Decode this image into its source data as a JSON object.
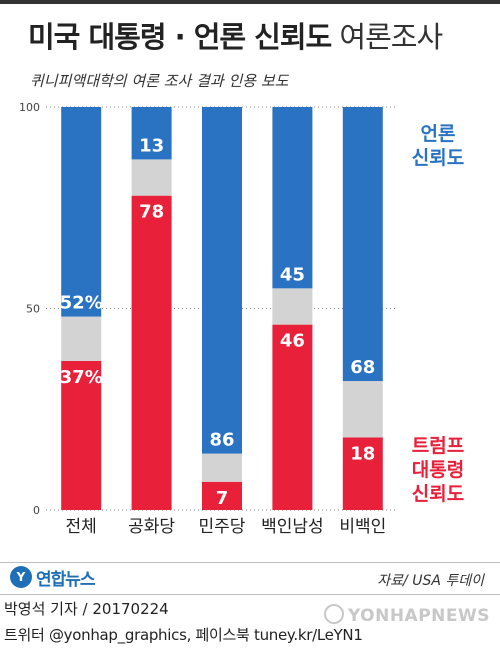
{
  "header": {
    "title_bold": "미국 대통령 · 언론 신뢰도",
    "title_light": " 여론조사",
    "subtitle": "퀴니피액대학의 여론 조사 결과 인용 보도"
  },
  "chart_data": {
    "type": "bar",
    "stacked": true,
    "categories": [
      "전체",
      "공화당",
      "민주당",
      "백인남성",
      "비백인"
    ],
    "ylim": [
      0,
      100
    ],
    "yticks": [
      0,
      50,
      100
    ],
    "series": [
      {
        "name": "트럼프 대통령 신뢰도",
        "color": "#e8203a",
        "values": [
          37,
          78,
          7,
          46,
          18
        ]
      },
      {
        "name": "",
        "color": "#d3d3d3",
        "values": [
          11,
          9,
          7,
          9,
          14
        ]
      },
      {
        "name": "언론 신뢰도",
        "color": "#2a73c2",
        "values": [
          52,
          13,
          86,
          45,
          68
        ]
      }
    ],
    "data_labels": {
      "trump": [
        "37%",
        "78",
        "7",
        "46",
        "18"
      ],
      "media": [
        "52%",
        "13",
        "86",
        "45",
        "68"
      ]
    },
    "legend": {
      "media_lines": [
        "언론",
        "신뢰도"
      ],
      "trump_lines": [
        "트럼프",
        "대통령",
        "신뢰도"
      ]
    },
    "grid": "dotted-horizontal"
  },
  "footer": {
    "logo_text": "연합뉴스",
    "source": "자료/ USA 투데이",
    "reporter": "박영석 기자 / 20170224",
    "twitter": "트위터 @yonhap_graphics, 페이스북 tuney.kr/LeYN1",
    "watermark": "YONHAPNEWS"
  },
  "colors": {
    "trump": "#e8203a",
    "media": "#2a73c2",
    "neutral": "#d3d3d3"
  }
}
